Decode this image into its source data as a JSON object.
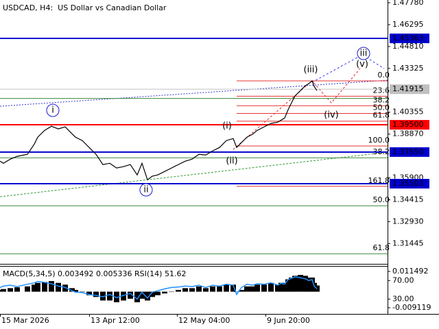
{
  "chart_data": [
    {
      "type": "line",
      "title": "USDCAD, H4:  US Dollar vs Canadian Dollar",
      "x": [
        0,
        5,
        15,
        25,
        40,
        50,
        55,
        65,
        75,
        85,
        95,
        105,
        110,
        120,
        130,
        140,
        150,
        160,
        170,
        180,
        190,
        200,
        207,
        215,
        222,
        230,
        240,
        250,
        260,
        270,
        280,
        290,
        300,
        310,
        320,
        330,
        340,
        345,
        352,
        360,
        368,
        375,
        385,
        395,
        405,
        410,
        415,
        420,
        425,
        430,
        438,
        445,
        450,
        455,
        458,
        462
      ],
      "values": [
        1.3703,
        1.3689,
        1.3717,
        1.3736,
        1.375,
        1.3819,
        1.3866,
        1.3912,
        1.394,
        1.3922,
        1.3936,
        1.3889,
        1.3866,
        1.3843,
        1.3796,
        1.375,
        1.368,
        1.3689,
        1.3657,
        1.3666,
        1.368,
        1.361,
        1.3689,
        1.3577,
        1.3601,
        1.361,
        1.3633,
        1.3657,
        1.368,
        1.3703,
        1.3717,
        1.375,
        1.3745,
        1.3773,
        1.3796,
        1.3843,
        1.3857,
        1.3796,
        1.3829,
        1.3866,
        1.3885,
        1.3912,
        1.3936,
        1.3959,
        1.3968,
        1.3982,
        1.3996,
        1.4052,
        1.4099,
        1.4145,
        1.4182,
        1.4215,
        1.4229,
        1.4248,
        1.421,
        1.4182
      ],
      "color": "#000000",
      "xlim": [
        0,
        565
      ],
      "ylim": [
        1.30063,
        1.47966
      ],
      "yticks": [
        {
          "value": 1.4778,
          "label": "1.47780"
        },
        {
          "value": 1.46295,
          "label": "1.46295"
        },
        {
          "value": 1.4481,
          "label": "1.44810"
        },
        {
          "value": 1.43325,
          "label": "1.43325"
        },
        {
          "value": 1.40355,
          "label": "1.40355"
        },
        {
          "value": 1.3887,
          "label": "1.38870"
        },
        {
          "value": 1.359,
          "label": "1.35900"
        },
        {
          "value": 1.34415,
          "label": "1.34415"
        },
        {
          "value": 1.3293,
          "label": "1.32930"
        },
        {
          "value": 1.31445,
          "label": "1.31445"
        }
      ],
      "levels": [
        {
          "value": 1.45363,
          "label": "1.45363",
          "color": "#0000cd"
        },
        {
          "value": 1.41915,
          "label": "1.41915",
          "color": "#c0c0c0"
        },
        {
          "value": 1.395,
          "label": "1.39500",
          "color": "#ff0000"
        },
        {
          "value": 1.3765,
          "label": "1.37650",
          "color": "#0000cd"
        },
        {
          "value": 1.35503,
          "label": "1.35503",
          "color": "#0000cd"
        }
      ],
      "fib_red": {
        "start": 1.3806,
        "end": 1.4248,
        "color": "#e83030",
        "levels": [
          {
            "value": 0,
            "label": "0.0"
          },
          {
            "value": 23.6,
            "label": "23.6"
          },
          {
            "value": 38.2,
            "label": "38.2"
          },
          {
            "value": 50,
            "label": "50.0"
          },
          {
            "value": 61.8,
            "label": "61.8"
          },
          {
            "value": 100,
            "label": "100.0"
          },
          {
            "value": 161.8,
            "label": "161.8"
          }
        ]
      },
      "fib_green": {
        "start": 1.2021,
        "end": 1.478,
        "color": "#3a8a3a",
        "levels": [
          {
            "value": 23.6
          },
          {
            "value": 38.2,
            "label": "38.2"
          },
          {
            "value": 50,
            "label": "50.0"
          },
          {
            "value": 61.8,
            "label": "61.8"
          }
        ]
      },
      "annotations": [
        {
          "text": "i",
          "color": "#1a1acc",
          "circle": true
        },
        {
          "text": "ii",
          "color": "#1a1acc",
          "circle": true
        },
        {
          "text": "iii",
          "color": "#1a1acc",
          "circle": true
        },
        {
          "text": "(i)",
          "color": "#e02020",
          "circle": false
        },
        {
          "text": "(ii)",
          "color": "#e02020",
          "circle": false
        },
        {
          "text": "(iii)",
          "color": "#e02020",
          "circle": false
        },
        {
          "text": "(iv)",
          "color": "#e02020",
          "circle": false
        },
        {
          "text": "(v)",
          "color": "#e02020",
          "circle": false
        }
      ]
    },
    {
      "type": "indicator",
      "title": "MACD(5,34,5) 0.003492 0.005336 RSI(14) 51.62",
      "x": [
        0,
        5,
        15,
        25,
        40,
        50,
        55,
        65,
        75,
        85,
        95,
        105,
        110,
        120,
        130,
        140,
        150,
        160,
        170,
        180,
        190,
        200,
        207,
        215,
        222,
        230,
        240,
        250,
        260,
        270,
        280,
        290,
        300,
        310,
        320,
        330,
        340,
        345,
        352,
        360,
        368,
        375,
        385,
        395,
        405,
        410,
        415,
        420,
        425,
        430,
        438,
        445,
        450,
        455,
        458,
        462
      ],
      "xlim": [
        0,
        565
      ],
      "xticks": [
        {
          "value": 0,
          "label": "15 Mar 2026"
        },
        {
          "value": 130,
          "label": "13 Apr 12:00"
        },
        {
          "value": 258,
          "label": "12 May 04:00"
        },
        {
          "value": 387,
          "label": "9 Jun 20:00"
        }
      ],
      "ylim": [
        -0.01262,
        0.01421
      ],
      "yticks": [
        0.011492,
        -0.009119
      ],
      "y2lim": [
        -2,
        100
      ],
      "y2ticks": [
        {
          "value": 70,
          "label": "70.00"
        },
        {
          "value": 30,
          "label": "30.00"
        }
      ],
      "series": [
        {
          "color": "#000000",
          "values": [
            0.001,
            0.0015,
            0.002,
            0.0025,
            0.003,
            0.004,
            0.005,
            0.0055,
            0.006,
            0.005,
            0.004,
            0.002,
            0.001,
            0,
            -0.002,
            -0.003,
            -0.005,
            -0.005,
            -0.006,
            -0.005,
            -0.004,
            -0.006,
            -0.004,
            -0.005,
            -0.003,
            -0.002,
            -0.001,
            0,
            0.001,
            0.002,
            0.002,
            0.003,
            0.002,
            0.003,
            0.003,
            0.004,
            0.004,
            0,
            0.001,
            0.003,
            0.003,
            0.004,
            0.004,
            0.005,
            0.004,
            0.005,
            0.005,
            0.007,
            0.008,
            0.009,
            0.0095,
            0.009,
            0.008,
            0.008,
            0.005,
            0.0035
          ]
        },
        {
          "color": "#1e90ff",
          "axis": "y2",
          "values": [
            55,
            58,
            60,
            57,
            62,
            65,
            68,
            66,
            63,
            58,
            55,
            48,
            45,
            44,
            40,
            38,
            35,
            40,
            33,
            38,
            42,
            30,
            45,
            32,
            45,
            48,
            52,
            55,
            56,
            58,
            57,
            60,
            55,
            60,
            58,
            62,
            60,
            40,
            55,
            62,
            60,
            63,
            62,
            65,
            60,
            64,
            62,
            72,
            75,
            78,
            76,
            74,
            70,
            72,
            58,
            52
          ]
        }
      ]
    }
  ]
}
